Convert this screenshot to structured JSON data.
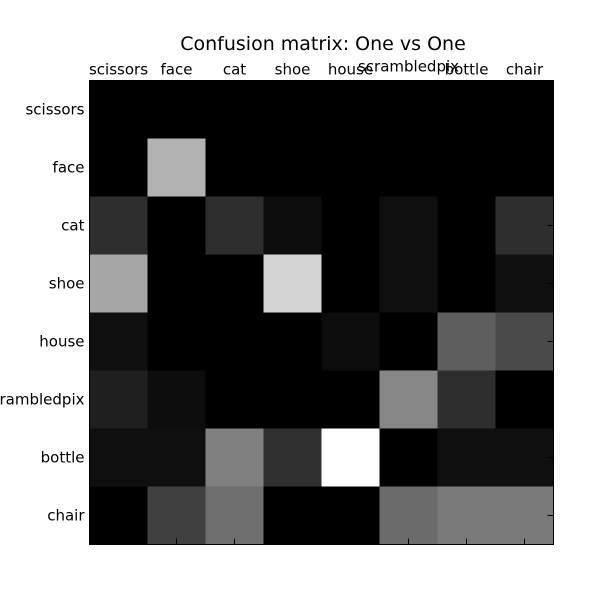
{
  "chart_data": {
    "type": "heatmap",
    "title": "Confusion matrix: One vs One",
    "x_categories": [
      "scissors",
      "face",
      "cat",
      "shoe",
      "house",
      "scrambledpix",
      "bottle",
      "chair"
    ],
    "y_categories": [
      "scissors",
      "face",
      "cat",
      "shoe",
      "house",
      "scrambledpix",
      "bottle",
      "chair"
    ],
    "colormap": "gray",
    "value_range": [
      0,
      1
    ],
    "grid": false,
    "values": [
      [
        0.0,
        0.0,
        0.0,
        0.0,
        0.0,
        0.0,
        0.0,
        0.0
      ],
      [
        0.0,
        0.7,
        0.0,
        0.0,
        0.0,
        0.0,
        0.0,
        0.0
      ],
      [
        0.18,
        0.0,
        0.18,
        0.05,
        0.0,
        0.06,
        0.0,
        0.18
      ],
      [
        0.65,
        0.0,
        0.0,
        0.83,
        0.0,
        0.06,
        0.0,
        0.06
      ],
      [
        0.06,
        0.0,
        0.0,
        0.0,
        0.05,
        0.0,
        0.37,
        0.29
      ],
      [
        0.12,
        0.05,
        0.0,
        0.0,
        0.0,
        0.53,
        0.18,
        0.0
      ],
      [
        0.06,
        0.06,
        0.5,
        0.19,
        1.0,
        0.0,
        0.06,
        0.06
      ],
      [
        0.0,
        0.25,
        0.43,
        0.0,
        0.0,
        0.42,
        0.48,
        0.48
      ]
    ]
  }
}
